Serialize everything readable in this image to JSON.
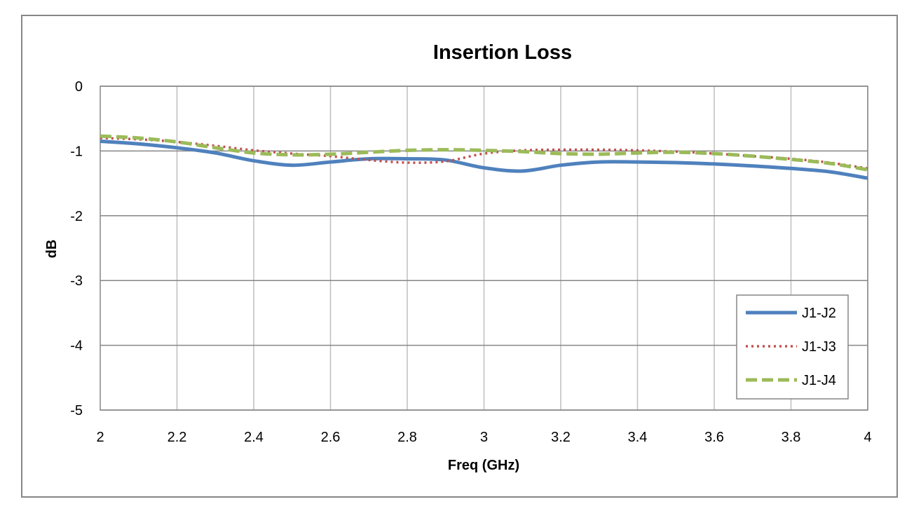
{
  "chart_data": {
    "type": "line",
    "title": "Insertion Loss",
    "xlabel": "Freq (GHz)",
    "ylabel": "dB",
    "xlim": [
      2,
      4
    ],
    "ylim": [
      -5,
      0
    ],
    "x_ticks": [
      2,
      2.2,
      2.4,
      2.6,
      2.8,
      3,
      3.2,
      3.4,
      3.6,
      3.8,
      4
    ],
    "x_tick_labels": [
      "2",
      "2.2",
      "2.4",
      "2.6",
      "2.8",
      "3",
      "3.2",
      "3.4",
      "3.6",
      "3.8",
      "4"
    ],
    "y_ticks": [
      0,
      -1,
      -2,
      -3,
      -4,
      -5
    ],
    "y_tick_labels": [
      "0",
      "-1",
      "-2",
      "-3",
      "-4",
      "-5"
    ],
    "grid": true,
    "legend_position": "bottom-right",
    "series": [
      {
        "name": "J1-J2",
        "color": "#4F81BD",
        "style": "solid",
        "x": [
          2,
          2.1,
          2.2,
          2.3,
          2.4,
          2.5,
          2.6,
          2.7,
          2.8,
          2.9,
          3,
          3.1,
          3.2,
          3.3,
          3.4,
          3.5,
          3.6,
          3.7,
          3.8,
          3.9,
          4
        ],
        "y": [
          -0.85,
          -0.89,
          -0.95,
          -1.03,
          -1.15,
          -1.22,
          -1.17,
          -1.12,
          -1.12,
          -1.14,
          -1.26,
          -1.31,
          -1.22,
          -1.17,
          -1.17,
          -1.18,
          -1.2,
          -1.23,
          -1.27,
          -1.32,
          -1.42
        ]
      },
      {
        "name": "J1-J3",
        "color": "#C0504D",
        "style": "dotted",
        "x": [
          2,
          2.1,
          2.2,
          2.3,
          2.4,
          2.5,
          2.6,
          2.7,
          2.8,
          2.9,
          3,
          3.1,
          3.2,
          3.3,
          3.4,
          3.5,
          3.6,
          3.7,
          3.8,
          3.9,
          4
        ],
        "y": [
          -0.8,
          -0.82,
          -0.86,
          -0.92,
          -0.99,
          -1.04,
          -1.08,
          -1.14,
          -1.18,
          -1.16,
          -1.04,
          -0.99,
          -0.98,
          -0.98,
          -0.99,
          -1.01,
          -1.04,
          -1.08,
          -1.12,
          -1.18,
          -1.27
        ]
      },
      {
        "name": "J1-J4",
        "color": "#9BBB59",
        "style": "dashed",
        "x": [
          2,
          2.1,
          2.2,
          2.3,
          2.4,
          2.5,
          2.6,
          2.7,
          2.8,
          2.9,
          3,
          3.1,
          3.2,
          3.3,
          3.4,
          3.5,
          3.6,
          3.7,
          3.8,
          3.9,
          4
        ],
        "y": [
          -0.77,
          -0.8,
          -0.86,
          -0.95,
          -1.03,
          -1.06,
          -1.05,
          -1.02,
          -0.99,
          -0.98,
          -0.99,
          -1.01,
          -1.04,
          -1.05,
          -1.03,
          -1.02,
          -1.04,
          -1.08,
          -1.13,
          -1.19,
          -1.29
        ]
      }
    ]
  }
}
